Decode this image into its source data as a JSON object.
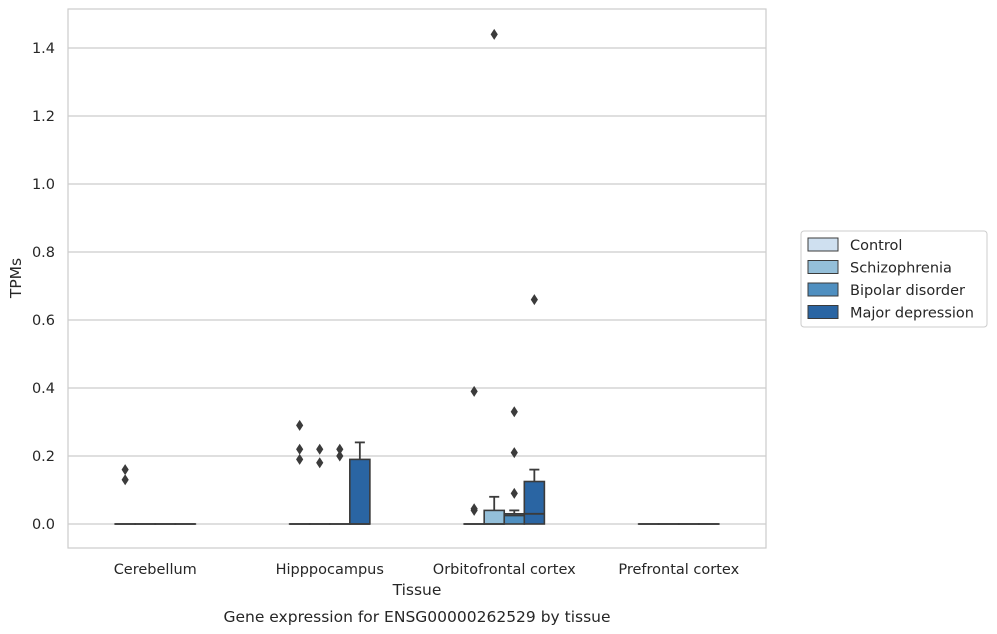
{
  "chart_data": {
    "type": "box",
    "xlabel": "Tissue",
    "ylabel": "TPMs",
    "caption": "Gene expression for ENSG00000262529 by tissue",
    "ylim": [
      -0.07,
      1.52
    ],
    "yticks": [
      "0.0",
      "0.2",
      "0.4",
      "0.6",
      "0.8",
      "1.0",
      "1.2",
      "1.4"
    ],
    "grid": "horizontal",
    "legend_position": "right",
    "categories": [
      "Cerebellum",
      "Hipppocampus",
      "Orbitofrontal cortex",
      "Prefrontal cortex"
    ],
    "series": [
      {
        "name": "Control",
        "color": "#cfe0f0",
        "boxes": [
          {
            "q1": 0,
            "median": 0,
            "q3": 0,
            "whislo": 0,
            "whishi": 0,
            "fliers": [
              0.13,
              0.16
            ]
          },
          {
            "q1": 0,
            "median": 0,
            "q3": 0,
            "whislo": 0,
            "whishi": 0,
            "fliers": [
              0.19,
              0.22,
              0.29
            ]
          },
          {
            "q1": 0,
            "median": 0,
            "q3": 0,
            "whislo": 0,
            "whishi": 0,
            "fliers": [
              0.04,
              0.045,
              0.39
            ]
          },
          {
            "q1": 0,
            "median": 0,
            "q3": 0,
            "whislo": 0,
            "whishi": 0,
            "fliers": []
          }
        ]
      },
      {
        "name": "Schizophrenia",
        "color": "#94bfd9",
        "boxes": [
          {
            "q1": 0,
            "median": 0,
            "q3": 0,
            "whislo": 0,
            "whishi": 0,
            "fliers": []
          },
          {
            "q1": 0,
            "median": 0,
            "q3": 0,
            "whislo": 0,
            "whishi": 0,
            "fliers": [
              0.18,
              0.22
            ]
          },
          {
            "q1": 0,
            "median": 0,
            "q3": 0.04,
            "whislo": 0,
            "whishi": 0.08,
            "fliers": [
              1.44
            ]
          },
          {
            "q1": 0,
            "median": 0,
            "q3": 0,
            "whislo": 0,
            "whishi": 0,
            "fliers": []
          }
        ]
      },
      {
        "name": "Bipolar disorder",
        "color": "#4f8fc0",
        "boxes": [
          {
            "q1": 0,
            "median": 0,
            "q3": 0,
            "whislo": 0,
            "whishi": 0,
            "fliers": []
          },
          {
            "q1": 0,
            "median": 0,
            "q3": 0,
            "whislo": 0,
            "whishi": 0,
            "fliers": [
              0.2,
              0.22
            ]
          },
          {
            "q1": 0,
            "median": 0.025,
            "q3": 0.03,
            "whislo": 0,
            "whishi": 0.04,
            "fliers": [
              0.09,
              0.21,
              0.33
            ]
          },
          {
            "q1": 0,
            "median": 0,
            "q3": 0,
            "whislo": 0,
            "whishi": 0,
            "fliers": []
          }
        ]
      },
      {
        "name": "Major depression",
        "color": "#2a65a3",
        "boxes": [
          {
            "q1": 0,
            "median": 0,
            "q3": 0,
            "whislo": 0,
            "whishi": 0,
            "fliers": []
          },
          {
            "q1": 0,
            "median": 0,
            "q3": 0.19,
            "whislo": 0,
            "whishi": 0.24,
            "fliers": []
          },
          {
            "q1": 0,
            "median": 0.03,
            "q3": 0.125,
            "whislo": 0,
            "whishi": 0.16,
            "fliers": [
              0.66
            ]
          },
          {
            "q1": 0,
            "median": 0,
            "q3": 0,
            "whislo": 0,
            "whishi": 0,
            "fliers": []
          }
        ]
      }
    ]
  }
}
